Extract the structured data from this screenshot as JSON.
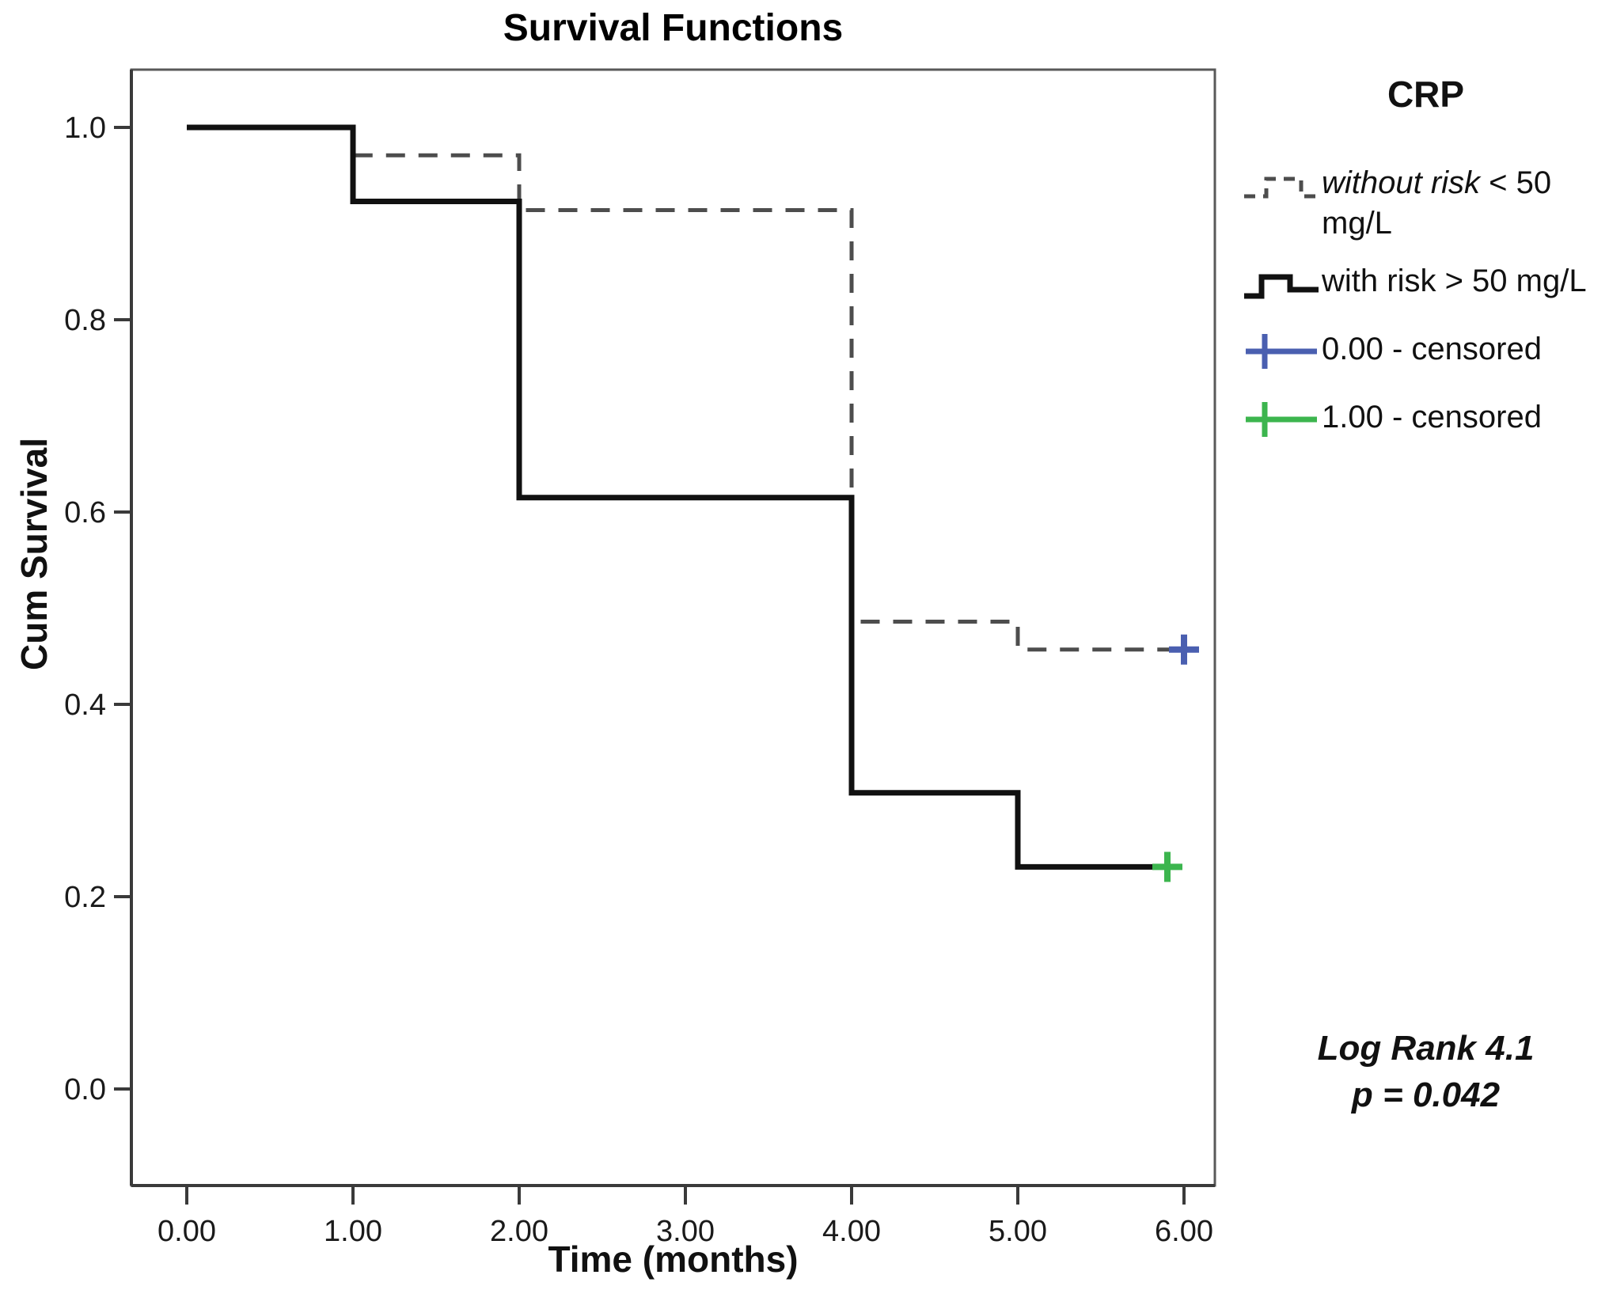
{
  "title": "Survival Functions",
  "y_axis_title": "Cum Survival",
  "x_axis_title": "Time (months)",
  "legend": {
    "title": "CRP",
    "items": [
      {
        "glyph": "dashed-step-line",
        "label_italic": "without risk",
        "label_rest": " < 50 mg/L"
      },
      {
        "glyph": "solid-step-line",
        "label": "with risk > 50 mg/L"
      },
      {
        "glyph": "plus-marker",
        "label": "0.00 - censored"
      },
      {
        "glyph": "plus-marker",
        "label": "1.00 - censored"
      }
    ]
  },
  "annotation": {
    "line1": "Log Rank 4.1",
    "line2_italic": "p",
    "line2_rest": " = 0.042"
  },
  "chart_data": {
    "type": "line",
    "subtype": "kaplan-meier-step",
    "title": "Survival Functions",
    "xlabel": "Time (months)",
    "ylabel": "Cum Survival",
    "xlim": [
      0,
      6.3
    ],
    "ylim": [
      0,
      1.0
    ],
    "grid": false,
    "legend_position": "right",
    "x_ticks": [
      0,
      1,
      2,
      3,
      4,
      5,
      6
    ],
    "x_tick_labels": [
      "0.00",
      "1.00",
      "2.00",
      "3.00",
      "4.00",
      "5.00",
      "6.00"
    ],
    "y_ticks": [
      0.0,
      0.2,
      0.4,
      0.6,
      0.8,
      1.0
    ],
    "y_tick_labels": [
      "0.0",
      "0.2",
      "0.4",
      "0.6",
      "0.8",
      "1.0"
    ],
    "series": [
      {
        "name": "without risk < 50 mg/L",
        "group_code": "0.00",
        "style": "dashed",
        "color": "#4d4d4d",
        "stroke_width": 5,
        "steps": [
          [
            0,
            1.0
          ],
          [
            1,
            0.971
          ],
          [
            2,
            0.914
          ],
          [
            4,
            0.486
          ],
          [
            5,
            0.457
          ]
        ],
        "end_x": 6.0
      },
      {
        "name": "with risk > 50 mg/L",
        "group_code": "1.00",
        "style": "solid",
        "color": "#111111",
        "stroke_width": 7,
        "steps": [
          [
            0,
            1.0
          ],
          [
            1,
            0.923
          ],
          [
            2,
            0.615
          ],
          [
            4,
            0.308
          ],
          [
            5,
            0.231
          ]
        ],
        "end_x": 5.9
      }
    ],
    "censored": [
      {
        "series": "without risk < 50 mg/L",
        "x": 6.0,
        "y": 0.457,
        "color": "#4A5FB0"
      },
      {
        "series": "with risk > 50 mg/L",
        "x": 5.9,
        "y": 0.231,
        "color": "#3CB54E"
      }
    ],
    "colors": {
      "censored_0": "#4A5FB0",
      "censored_1": "#3CB54E",
      "axis": "#3a3a3a",
      "border": "#595959",
      "tick_label": "#1a1a1a"
    }
  }
}
